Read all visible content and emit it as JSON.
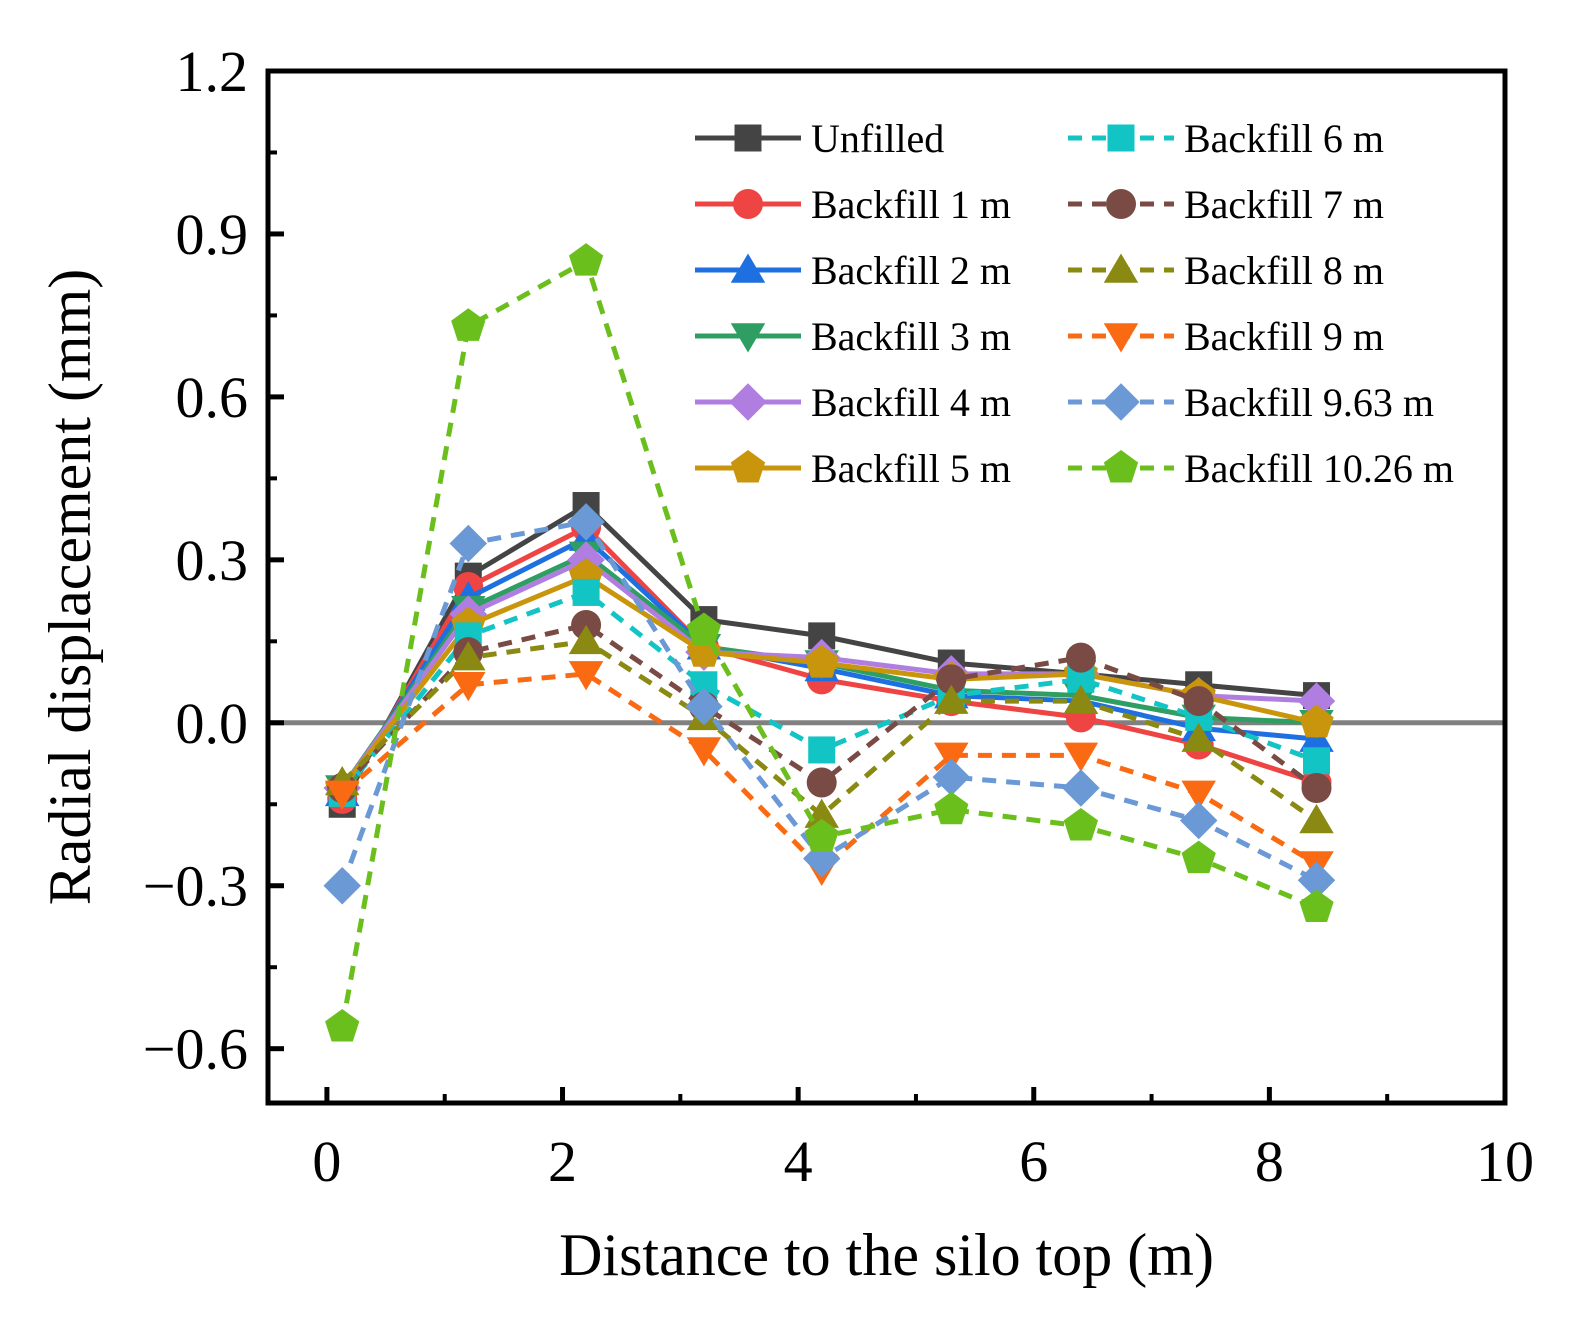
{
  "chart_data": {
    "type": "line",
    "xlabel": "Distance to the silo top (m)",
    "ylabel": "Radial displacement (mm)",
    "xlim": [
      -0.5,
      10
    ],
    "ylim": [
      -0.7,
      1.2
    ],
    "xticks": [
      0,
      2,
      4,
      6,
      8,
      10
    ],
    "xtick_labels": [
      "0",
      "2",
      "4",
      "6",
      "8",
      "10"
    ],
    "yticks": [
      -0.6,
      -0.3,
      0.0,
      0.3,
      0.6,
      0.9,
      1.2
    ],
    "ytick_labels": [
      "−0.6",
      "−0.3",
      "0.0",
      "0.3",
      "0.6",
      "0.9",
      "1.2"
    ],
    "reference_line": {
      "y": 0,
      "color": "#808080"
    },
    "legend_position": "top-right",
    "x": [
      0.13,
      1.2,
      2.2,
      3.2,
      4.2,
      5.3,
      6.4,
      7.4,
      8.4
    ],
    "series": [
      {
        "name": "Unfilled",
        "color": "#444444",
        "marker": "square",
        "dash": false,
        "values": [
          -0.15,
          0.27,
          0.4,
          0.19,
          0.16,
          0.11,
          0.09,
          0.07,
          0.05
        ]
      },
      {
        "name": "Backfill 1 m",
        "color": "#ef4444",
        "marker": "circle",
        "dash": false,
        "values": [
          -0.14,
          0.25,
          0.36,
          0.14,
          0.08,
          0.04,
          0.01,
          -0.04,
          -0.11
        ]
      },
      {
        "name": "Backfill 2 m",
        "color": "#1e6fe0",
        "marker": "triangle-up",
        "dash": false,
        "values": [
          -0.13,
          0.23,
          0.34,
          0.14,
          0.1,
          0.05,
          0.04,
          -0.01,
          -0.03
        ]
      },
      {
        "name": "Backfill 3 m",
        "color": "#2e9e62",
        "marker": "triangle-down",
        "dash": false,
        "values": [
          -0.12,
          0.21,
          0.31,
          0.14,
          0.11,
          0.06,
          0.05,
          0.01,
          0.0
        ]
      },
      {
        "name": "Backfill 4 m",
        "color": "#b07de0",
        "marker": "diamond",
        "dash": false,
        "values": [
          -0.12,
          0.2,
          0.3,
          0.13,
          0.12,
          0.09,
          0.09,
          0.05,
          0.04
        ]
      },
      {
        "name": "Backfill 5 m",
        "color": "#c9950c",
        "marker": "pentagon",
        "dash": false,
        "values": [
          -0.12,
          0.18,
          0.27,
          0.13,
          0.11,
          0.08,
          0.09,
          0.05,
          0.0
        ]
      },
      {
        "name": "Backfill 6 m",
        "color": "#12c4c4",
        "marker": "square",
        "dash": true,
        "values": [
          -0.13,
          0.16,
          0.24,
          0.07,
          -0.05,
          0.05,
          0.08,
          0.01,
          -0.07
        ]
      },
      {
        "name": "Backfill 7 m",
        "color": "#7a4a44",
        "marker": "circle",
        "dash": true,
        "values": [
          -0.12,
          0.13,
          0.18,
          0.03,
          -0.11,
          0.08,
          0.12,
          0.04,
          -0.12
        ]
      },
      {
        "name": "Backfill 8 m",
        "color": "#8a8a12",
        "marker": "triangle-up",
        "dash": true,
        "values": [
          -0.11,
          0.12,
          0.15,
          0.01,
          -0.17,
          0.04,
          0.04,
          -0.03,
          -0.18
        ]
      },
      {
        "name": "Backfill 9 m",
        "color": "#fa6a12",
        "marker": "triangle-down",
        "dash": true,
        "values": [
          -0.13,
          0.07,
          0.09,
          -0.05,
          -0.27,
          -0.06,
          -0.06,
          -0.13,
          -0.26
        ]
      },
      {
        "name": "Backfill 9.63 m",
        "color": "#6b99d6",
        "marker": "diamond",
        "dash": true,
        "values": [
          -0.3,
          0.33,
          0.37,
          0.03,
          -0.25,
          -0.1,
          -0.12,
          -0.18,
          -0.29
        ]
      },
      {
        "name": "Backfill 10.26 m",
        "color": "#6bbf1c",
        "marker": "pentagon",
        "dash": true,
        "values": [
          -0.56,
          0.73,
          0.85,
          0.17,
          -0.21,
          -0.16,
          -0.19,
          -0.25,
          -0.34
        ]
      }
    ]
  }
}
